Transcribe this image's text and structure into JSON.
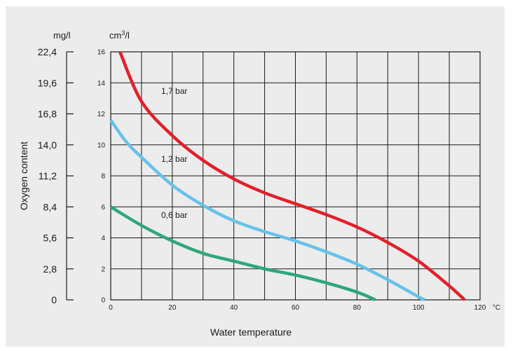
{
  "chart_data": {
    "type": "line",
    "xlabel": "Water temperature",
    "x_unit": "°C",
    "ylabel": "Oxygen content",
    "y_unit_primary": "cm³/l",
    "y_unit_secondary": "mg/l",
    "xlim": [
      0,
      120
    ],
    "ylim": [
      0,
      16
    ],
    "x_ticks": [
      0,
      20,
      40,
      60,
      80,
      100,
      120
    ],
    "y_ticks": [
      0,
      2,
      4,
      6,
      8,
      10,
      12,
      14,
      16
    ],
    "y2_ticks": [
      "0",
      "2,8",
      "5,6",
      "8,4",
      "11,2",
      "14,0",
      "16,8",
      "19,6",
      "22,4"
    ],
    "grid": true,
    "series": [
      {
        "name": "1,7 bar",
        "color": "#e2202a",
        "x": [
          3,
          10,
          20,
          30,
          40,
          50,
          60,
          70,
          80,
          90,
          100,
          110,
          115
        ],
        "y": [
          16,
          12.8,
          10.6,
          9.0,
          7.8,
          6.9,
          6.2,
          5.5,
          4.7,
          3.7,
          2.5,
          0.9,
          0
        ]
      },
      {
        "name": "1,2 bar",
        "color": "#66c2ea",
        "x": [
          0,
          5,
          10,
          20,
          30,
          40,
          50,
          60,
          70,
          80,
          90,
          100,
          102
        ],
        "y": [
          11.6,
          10.2,
          9.2,
          7.4,
          6.1,
          5.1,
          4.4,
          3.8,
          3.1,
          2.3,
          1.3,
          0.2,
          0
        ]
      },
      {
        "name": "0,6 bar",
        "color": "#2ea77a",
        "x": [
          0,
          10,
          20,
          30,
          40,
          50,
          60,
          70,
          80,
          86
        ],
        "y": [
          6.0,
          4.8,
          3.8,
          3.0,
          2.5,
          2.0,
          1.6,
          1.1,
          0.5,
          0
        ]
      }
    ]
  }
}
